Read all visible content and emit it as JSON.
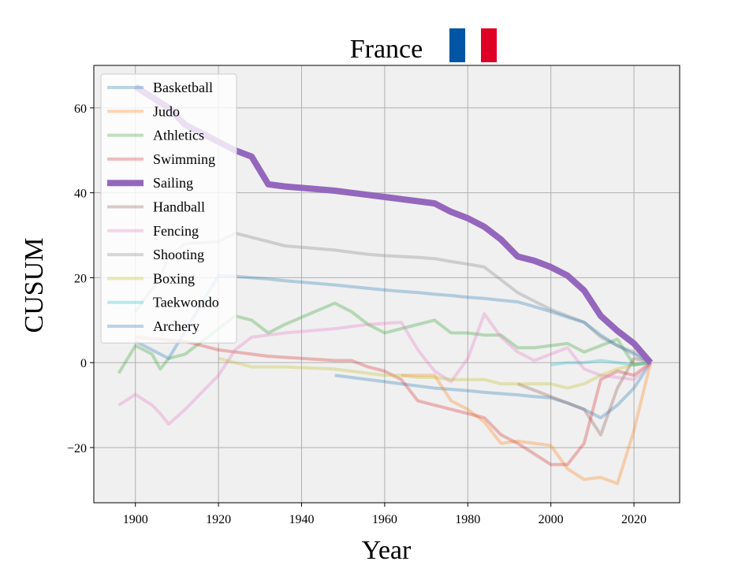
{
  "chart_data": {
    "type": "line",
    "title": "France",
    "xlabel": "Year",
    "ylabel": "CUSUM",
    "xlim": [
      1890,
      2031
    ],
    "ylim": [
      -33,
      70
    ],
    "xticks": [
      1900,
      1920,
      1940,
      1960,
      1980,
      2000,
      2020
    ],
    "yticks": [
      -20,
      0,
      20,
      40,
      60
    ],
    "grid": true,
    "legend_position": "top-left",
    "flag_colors": [
      "#0055a4",
      "#ffffff",
      "#df0025"
    ],
    "series": [
      {
        "name": "Basketball",
        "color": "#1f77b4",
        "highlight": false,
        "points": [
          [
            1948,
            -3
          ],
          [
            1952,
            -3.5
          ],
          [
            1956,
            -4
          ],
          [
            1960,
            -4.5
          ],
          [
            1964,
            -5
          ],
          [
            1968,
            -5.5
          ],
          [
            1972,
            -6
          ],
          [
            1976,
            -6.3
          ],
          [
            1980,
            -6.6
          ],
          [
            1984,
            -7
          ],
          [
            1988,
            -7.3
          ],
          [
            1992,
            -7.6
          ],
          [
            1996,
            -8
          ],
          [
            2000,
            -8.3
          ],
          [
            2004,
            -9.5
          ],
          [
            2008,
            -11
          ],
          [
            2012,
            -13
          ],
          [
            2016,
            -10
          ],
          [
            2020,
            -6
          ],
          [
            2024,
            0
          ]
        ]
      },
      {
        "name": "Judo",
        "color": "#ff7f0e",
        "highlight": false,
        "points": [
          [
            1964,
            -3
          ],
          [
            1972,
            -3
          ],
          [
            1976,
            -9
          ],
          [
            1980,
            -11
          ],
          [
            1984,
            -14
          ],
          [
            1988,
            -19
          ],
          [
            1992,
            -18.5
          ],
          [
            1996,
            -19
          ],
          [
            2000,
            -19.5
          ],
          [
            2004,
            -25
          ],
          [
            2008,
            -27.5
          ],
          [
            2012,
            -27
          ],
          [
            2016,
            -28.5
          ],
          [
            2020,
            -16
          ],
          [
            2024,
            0
          ]
        ]
      },
      {
        "name": "Athletics",
        "color": "#2ca02c",
        "highlight": false,
        "points": [
          [
            1896,
            -2.5
          ],
          [
            1900,
            4
          ],
          [
            1904,
            2
          ],
          [
            1906,
            -1.5
          ],
          [
            1908,
            1
          ],
          [
            1912,
            2
          ],
          [
            1920,
            8
          ],
          [
            1924,
            11
          ],
          [
            1928,
            10
          ],
          [
            1932,
            7
          ],
          [
            1936,
            9
          ],
          [
            1948,
            14
          ],
          [
            1952,
            12
          ],
          [
            1956,
            9
          ],
          [
            1960,
            7
          ],
          [
            1964,
            8
          ],
          [
            1972,
            10
          ],
          [
            1976,
            7
          ],
          [
            1980,
            7
          ],
          [
            1984,
            6.5
          ],
          [
            1988,
            6.5
          ],
          [
            1992,
            3.5
          ],
          [
            1996,
            3.5
          ],
          [
            2000,
            4
          ],
          [
            2004,
            4.5
          ],
          [
            2008,
            2.5
          ],
          [
            2012,
            4
          ],
          [
            2016,
            5.5
          ],
          [
            2020,
            -0.5
          ],
          [
            2024,
            0
          ]
        ]
      },
      {
        "name": "Swimming",
        "color": "#d62728",
        "highlight": false,
        "points": [
          [
            1900,
            6
          ],
          [
            1912,
            5
          ],
          [
            1920,
            3
          ],
          [
            1924,
            2.5
          ],
          [
            1928,
            2
          ],
          [
            1932,
            1.5
          ],
          [
            1948,
            0.5
          ],
          [
            1952,
            0.5
          ],
          [
            1956,
            -1
          ],
          [
            1960,
            -2
          ],
          [
            1964,
            -4
          ],
          [
            1968,
            -9
          ],
          [
            1972,
            -10
          ],
          [
            1976,
            -11
          ],
          [
            1980,
            -12
          ],
          [
            1984,
            -13
          ],
          [
            1988,
            -17
          ],
          [
            1992,
            -19
          ],
          [
            1996,
            -21.5
          ],
          [
            2000,
            -24
          ],
          [
            2004,
            -24
          ],
          [
            2008,
            -19
          ],
          [
            2012,
            -4
          ],
          [
            2016,
            -2
          ],
          [
            2020,
            -3
          ],
          [
            2024,
            0
          ]
        ]
      },
      {
        "name": "Sailing",
        "color": "#9467bd",
        "highlight": true,
        "points": [
          [
            1900,
            65
          ],
          [
            1908,
            60
          ],
          [
            1912,
            56
          ],
          [
            1920,
            52
          ],
          [
            1924,
            50
          ],
          [
            1928,
            48.5
          ],
          [
            1932,
            42
          ],
          [
            1936,
            41.5
          ],
          [
            1948,
            40.5
          ],
          [
            1952,
            40
          ],
          [
            1956,
            39.5
          ],
          [
            1960,
            39
          ],
          [
            1964,
            38.5
          ],
          [
            1968,
            38
          ],
          [
            1972,
            37.5
          ],
          [
            1976,
            35.5
          ],
          [
            1980,
            34
          ],
          [
            1984,
            32
          ],
          [
            1988,
            29
          ],
          [
            1992,
            25
          ],
          [
            1996,
            24
          ],
          [
            2000,
            22.5
          ],
          [
            2004,
            20.5
          ],
          [
            2008,
            17
          ],
          [
            2012,
            11
          ],
          [
            2016,
            7.5
          ],
          [
            2020,
            4.5
          ],
          [
            2024,
            0
          ]
        ]
      },
      {
        "name": "Handball",
        "color": "#8c564b",
        "highlight": false,
        "points": [
          [
            1992,
            -5
          ],
          [
            1996,
            -6.5
          ],
          [
            2000,
            -8
          ],
          [
            2004,
            -9.5
          ],
          [
            2008,
            -11
          ],
          [
            2012,
            -17
          ],
          [
            2016,
            -6
          ],
          [
            2020,
            1
          ],
          [
            2024,
            0
          ]
        ]
      },
      {
        "name": "Fencing",
        "color": "#e377c2",
        "highlight": false,
        "points": [
          [
            1896,
            -10
          ],
          [
            1900,
            -7.5
          ],
          [
            1904,
            -10
          ],
          [
            1906,
            -12
          ],
          [
            1908,
            -14.5
          ],
          [
            1912,
            -11
          ],
          [
            1920,
            -3
          ],
          [
            1924,
            3
          ],
          [
            1928,
            6
          ],
          [
            1932,
            6.5
          ],
          [
            1936,
            7
          ],
          [
            1948,
            8
          ],
          [
            1952,
            8.5
          ],
          [
            1956,
            9
          ],
          [
            1964,
            9.5
          ],
          [
            1968,
            3
          ],
          [
            1972,
            -2
          ],
          [
            1976,
            -4.5
          ],
          [
            1980,
            1
          ],
          [
            1984,
            11.5
          ],
          [
            1988,
            6
          ],
          [
            1992,
            2.5
          ],
          [
            1996,
            0.5
          ],
          [
            2000,
            2
          ],
          [
            2004,
            3.5
          ],
          [
            2008,
            -1.5
          ],
          [
            2012,
            -3
          ],
          [
            2016,
            -3.5
          ],
          [
            2020,
            -4
          ],
          [
            2024,
            0
          ]
        ]
      },
      {
        "name": "Shooting",
        "color": "#7f7f7f",
        "highlight": false,
        "points": [
          [
            1900,
            12
          ],
          [
            1906,
            20
          ],
          [
            1908,
            25
          ],
          [
            1912,
            28
          ],
          [
            1920,
            28.5
          ],
          [
            1924,
            30.5
          ],
          [
            1928,
            29.5
          ],
          [
            1932,
            28.5
          ],
          [
            1936,
            27.5
          ],
          [
            1948,
            26.5
          ],
          [
            1952,
            26
          ],
          [
            1956,
            25.5
          ],
          [
            1960,
            25.2
          ],
          [
            1964,
            25
          ],
          [
            1968,
            24.8
          ],
          [
            1972,
            24.5
          ],
          [
            1976,
            23.8
          ],
          [
            1980,
            23.2
          ],
          [
            1984,
            22.5
          ],
          [
            1988,
            19.5
          ],
          [
            1992,
            16.5
          ],
          [
            1996,
            14.5
          ],
          [
            2000,
            12.5
          ],
          [
            2004,
            11
          ],
          [
            2008,
            9.5
          ],
          [
            2012,
            6
          ],
          [
            2016,
            4
          ],
          [
            2020,
            2.5
          ],
          [
            2024,
            0
          ]
        ]
      },
      {
        "name": "Boxing",
        "color": "#bcbd22",
        "highlight": false,
        "points": [
          [
            1920,
            1
          ],
          [
            1924,
            0
          ],
          [
            1928,
            -1
          ],
          [
            1936,
            -1
          ],
          [
            1948,
            -1.5
          ],
          [
            1952,
            -2
          ],
          [
            1956,
            -2.5
          ],
          [
            1960,
            -3
          ],
          [
            1964,
            -3
          ],
          [
            1968,
            -3.5
          ],
          [
            1972,
            -3.5
          ],
          [
            1976,
            -4
          ],
          [
            1980,
            -4
          ],
          [
            1984,
            -4
          ],
          [
            1988,
            -5
          ],
          [
            1992,
            -5
          ],
          [
            1996,
            -5
          ],
          [
            2000,
            -5
          ],
          [
            2004,
            -6
          ],
          [
            2008,
            -5
          ],
          [
            2012,
            -3
          ],
          [
            2016,
            -1.5
          ],
          [
            2020,
            -0.5
          ],
          [
            2024,
            0
          ]
        ]
      },
      {
        "name": "Taekwondo",
        "color": "#17becf",
        "highlight": false,
        "points": [
          [
            2000,
            -0.5
          ],
          [
            2004,
            0
          ],
          [
            2008,
            0
          ],
          [
            2012,
            0.5
          ],
          [
            2016,
            0
          ],
          [
            2020,
            -0.5
          ],
          [
            2024,
            0
          ]
        ]
      },
      {
        "name": "Archery",
        "color": "#1f77b4",
        "highlight": false,
        "points": [
          [
            1900,
            5
          ],
          [
            1908,
            1
          ],
          [
            1920,
            20.5
          ],
          [
            1924,
            20.3
          ],
          [
            1928,
            20
          ],
          [
            1932,
            19.7
          ],
          [
            1936,
            19.3
          ],
          [
            1948,
            18.3
          ],
          [
            1952,
            17.9
          ],
          [
            1956,
            17.5
          ],
          [
            1960,
            17.1
          ],
          [
            1964,
            16.8
          ],
          [
            1968,
            16.5
          ],
          [
            1972,
            16.1
          ],
          [
            1976,
            15.8
          ],
          [
            1980,
            15.4
          ],
          [
            1984,
            15.1
          ],
          [
            1988,
            14.7
          ],
          [
            1992,
            14.3
          ],
          [
            1996,
            13.2
          ],
          [
            2000,
            12
          ],
          [
            2004,
            10.7
          ],
          [
            2008,
            9.5
          ],
          [
            2012,
            6.5
          ],
          [
            2016,
            4
          ],
          [
            2020,
            2
          ],
          [
            2024,
            0
          ]
        ]
      }
    ]
  }
}
